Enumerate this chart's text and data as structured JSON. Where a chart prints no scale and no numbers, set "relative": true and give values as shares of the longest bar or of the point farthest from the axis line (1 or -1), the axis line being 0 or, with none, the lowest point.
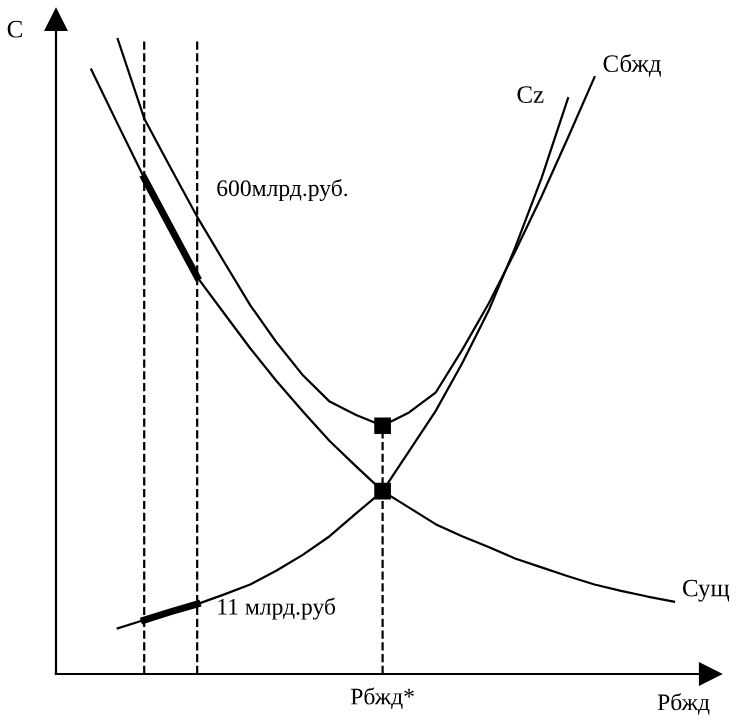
{
  "chart_data": {
    "type": "line",
    "relative": true,
    "xlabel": "Рбжд",
    "ylabel": "С",
    "categories": [
      null,
      null,
      null,
      null,
      null,
      null,
      null,
      null,
      null,
      null,
      null,
      null,
      null,
      null,
      null,
      null,
      null,
      null,
      null,
      null,
      null,
      null,
      null
    ],
    "marker": "none",
    "line_style": "solid",
    "legend": false,
    "series": [
      {
        "name": "Сущ",
        "color": "#000000",
        "values": [
          0.952,
          0.866,
          0.781,
          0.703,
          0.625,
          0.569,
          0.513,
          0.461,
          0.413,
          0.367,
          0.327,
          0.288,
          0.262,
          0.236,
          0.217,
          0.2,
          0.182,
          0.168,
          0.154,
          0.141,
          0.131,
          0.122,
          0.114
        ]
      },
      {
        "name": "Сz",
        "color": "#000000",
        "values": [
          null,
          0.072,
          0.085,
          0.098,
          0.11,
          0.125,
          0.141,
          0.163,
          0.188,
          0.217,
          0.253,
          0.288,
          0.351,
          0.414,
          0.489,
          0.572,
          0.671,
          0.781,
          0.907,
          null,
          null,
          null,
          null
        ]
      },
      {
        "name": "Сбжд",
        "color": "#000000",
        "values": [
          null,
          1.0,
          0.875,
          0.797,
          0.72,
          0.65,
          0.581,
          0.522,
          0.47,
          0.429,
          0.408,
          0.391,
          0.412,
          0.443,
          0.51,
          0.583,
          0.665,
          0.752,
          0.845,
          0.94,
          null,
          null,
          null
        ]
      },
      {
        "color": "#000000",
        "values": [
          null,
          null,
          0.781,
          0.703,
          0.625,
          null,
          null,
          null,
          null,
          null,
          null,
          null,
          null,
          null,
          null,
          null,
          null,
          null,
          null,
          null,
          null,
          null,
          null
        ]
      },
      {
        "color": "#000000",
        "values": [
          null,
          null,
          0.085,
          0.098,
          0.11,
          null,
          null,
          null,
          null,
          null,
          null,
          null,
          null,
          null,
          null,
          null,
          null,
          null,
          null,
          null,
          null,
          null,
          null
        ]
      },
      {
        "marker": "square",
        "color": "#000000",
        "values": [
          null,
          null,
          null,
          null,
          null,
          null,
          null,
          null,
          null,
          null,
          null,
          0.391,
          null,
          null,
          null,
          null,
          null,
          null,
          null,
          null,
          null,
          null,
          null
        ]
      },
      {
        "marker": "square",
        "color": "#000000",
        "values": [
          null,
          null,
          null,
          null,
          null,
          null,
          null,
          null,
          null,
          null,
          null,
          0.288,
          null,
          null,
          null,
          null,
          null,
          null,
          null,
          null,
          null,
          null,
          null
        ]
      }
    ],
    "annotations": [
      "600млрд.руб.",
      "11 млрд.руб",
      "Рбжд*"
    ]
  }
}
